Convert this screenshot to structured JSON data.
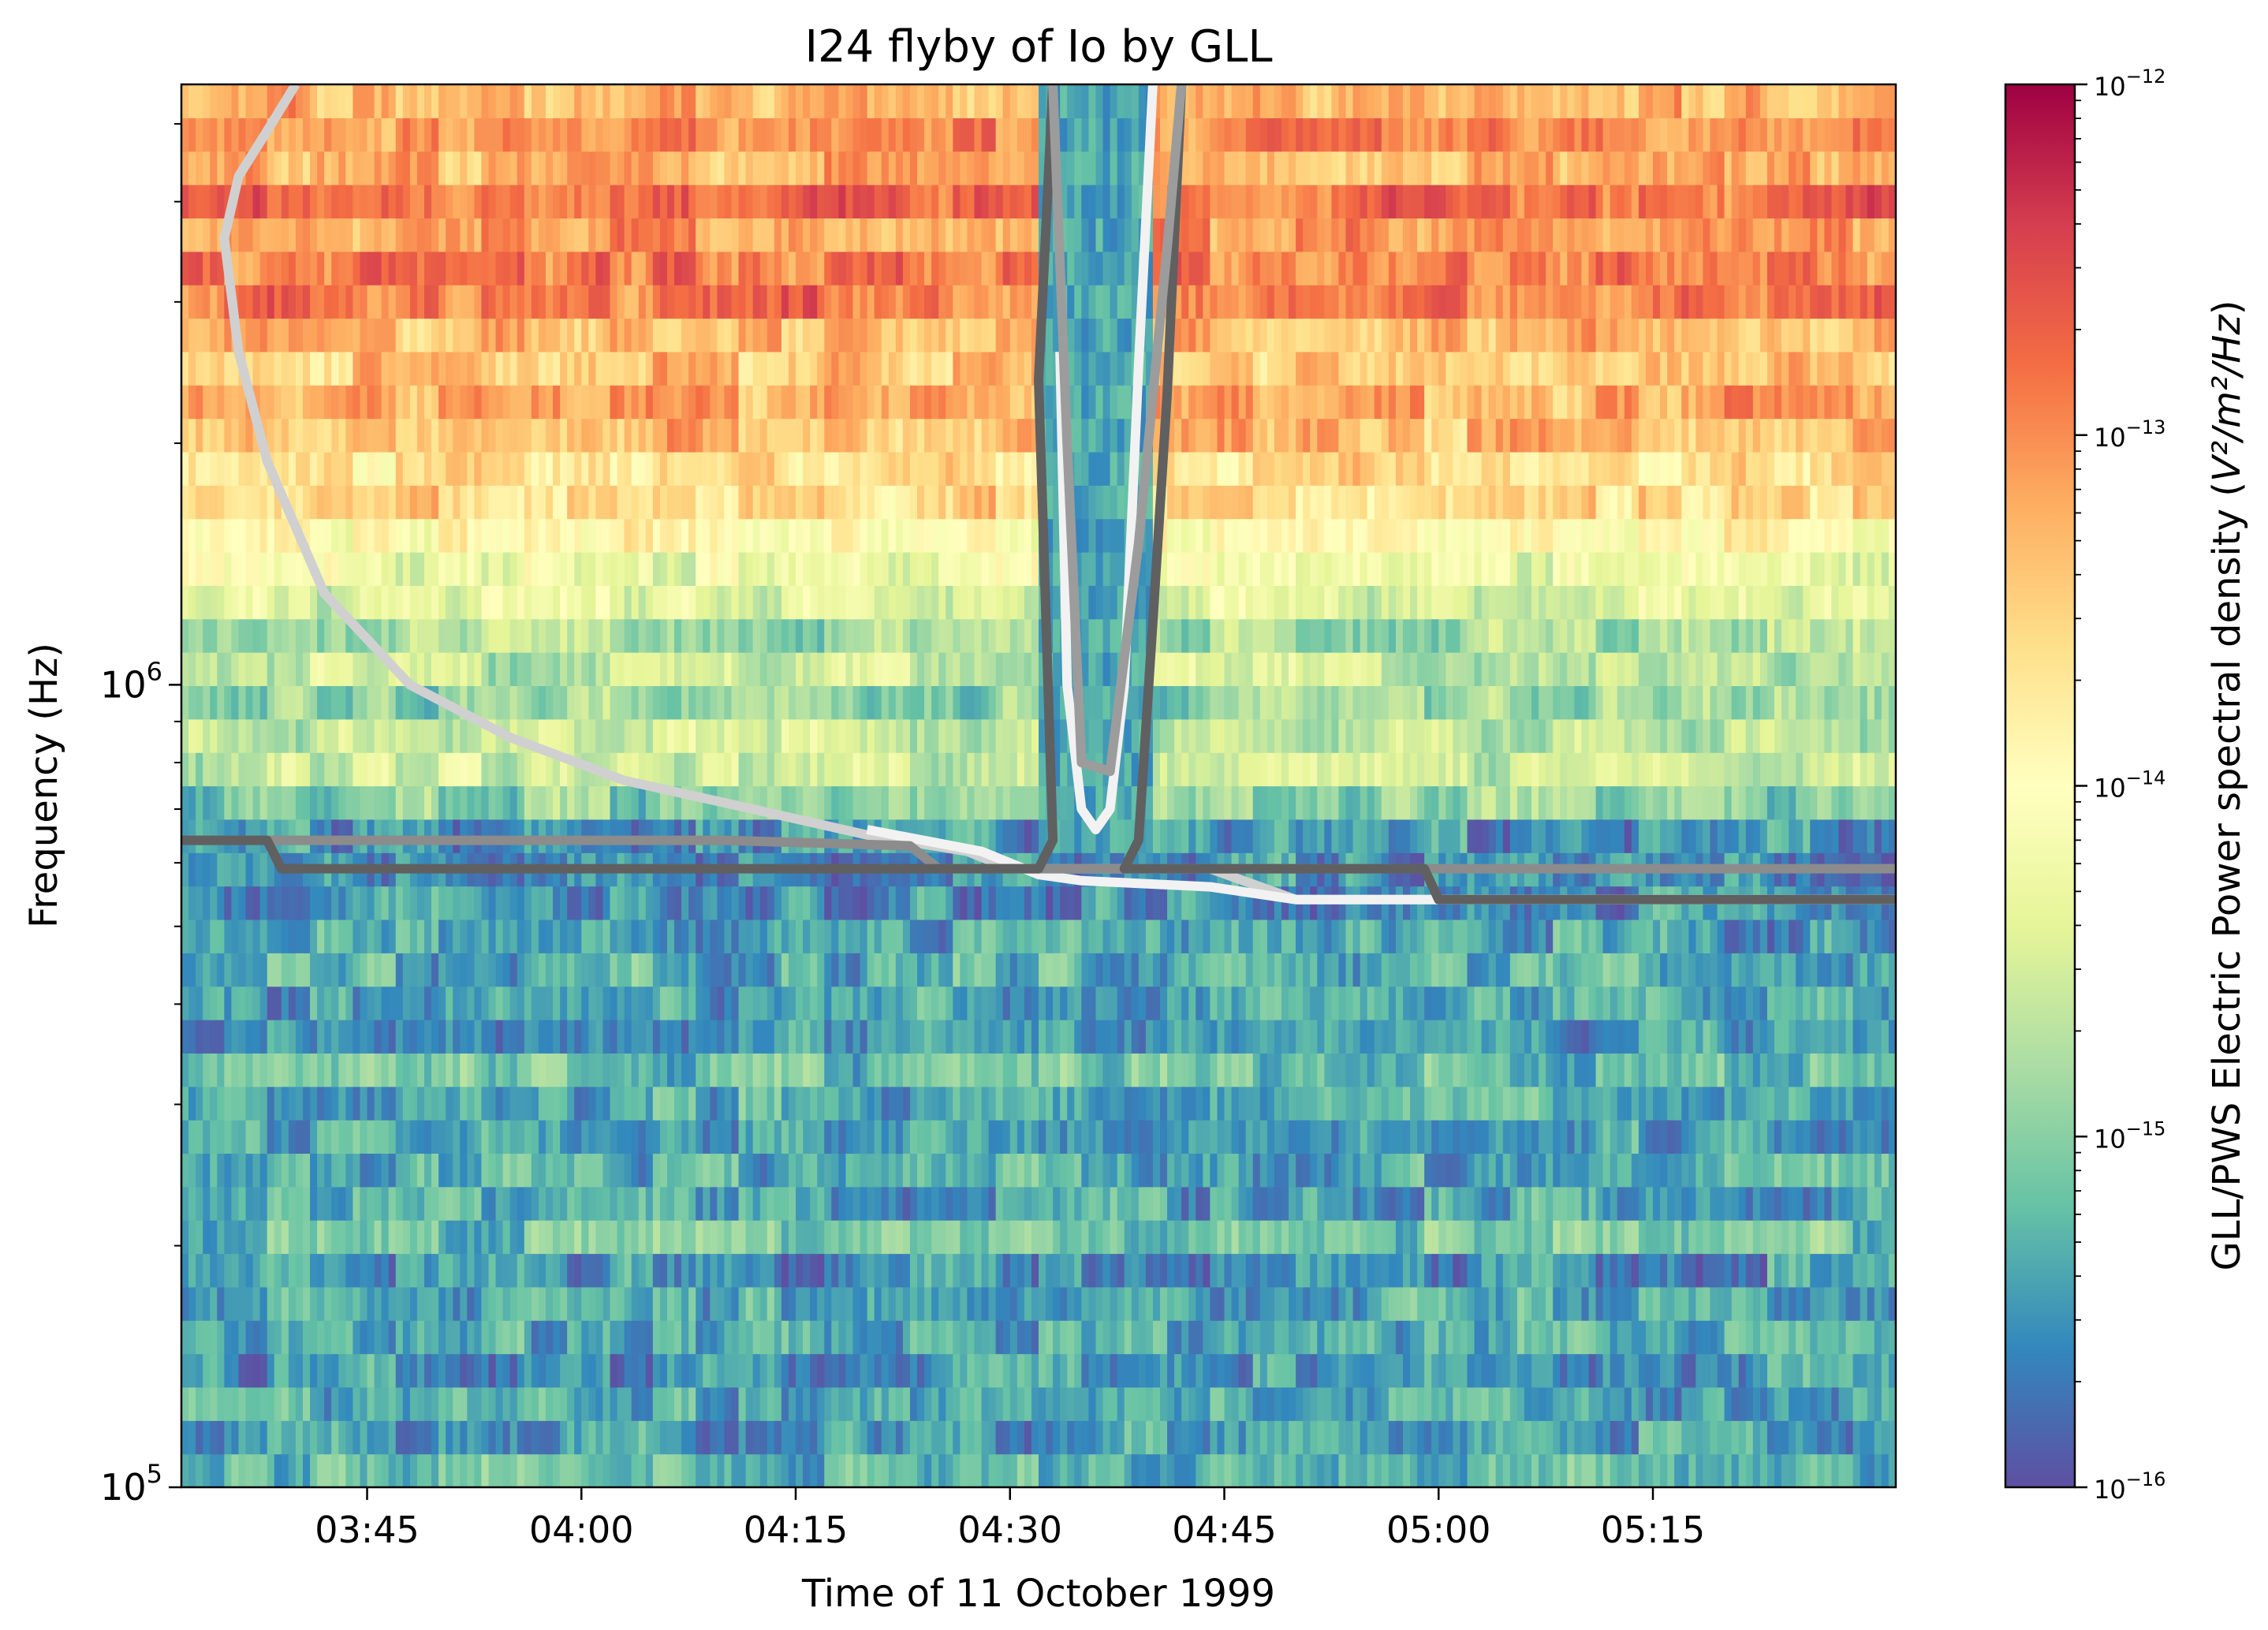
{
  "chart_data": {
    "type": "heatmap",
    "title": "I24 flyby of Io by GLL",
    "xlabel": "Time of 11 October 1999",
    "ylabel": "Frequency (Hz)",
    "colorbar_label_prefix": "GLL/PWS Electric Power spectral density (",
    "colorbar_label_unit": "V²/m²/Hz",
    "colorbar_label_suffix": ")",
    "colormap": "Spectral_r",
    "x_range": [
      "03:32",
      "05:32"
    ],
    "x_ticks": [
      "03:45",
      "04:00",
      "04:15",
      "04:30",
      "04:45",
      "05:00",
      "05:15"
    ],
    "y_scale": "log",
    "y_range": [
      100000,
      5600000
    ],
    "y_major_ticks": [
      {
        "base": "10",
        "exp": "5"
      },
      {
        "base": "10",
        "exp": "6"
      }
    ],
    "colorbar_scale": "log",
    "colorbar_range": [
      1e-16,
      1e-12
    ],
    "colorbar_ticks": [
      {
        "base": "10",
        "exp": "−12"
      },
      {
        "base": "10",
        "exp": "−13"
      },
      {
        "base": "10",
        "exp": "−14"
      },
      {
        "base": "10",
        "exp": "−15"
      },
      {
        "base": "10",
        "exp": "−16"
      }
    ],
    "intensity_profile_log10": {
      "frequency_hz": [
        100000,
        300000,
        500000,
        650000,
        800000,
        1100000,
        1400000,
        1800000,
        2400000,
        3300000,
        5600000
      ],
      "log10_psd": [
        -15.5,
        -15.3,
        -15.4,
        -15.3,
        -14.6,
        -14.9,
        -14.4,
        -13.6,
        -13.3,
        -12.9,
        -13.2
      ]
    },
    "series": [
      {
        "color": "#d0d0d0",
        "points": [
          [
            "03:40:00",
            5600000
          ],
          [
            "03:38:00",
            4900000
          ],
          [
            "03:36:00",
            4300000
          ],
          [
            "03:35:00",
            3600000
          ],
          [
            "03:36:00",
            2600000
          ],
          [
            "03:38:00",
            1900000
          ],
          [
            "03:42:00",
            1300000
          ],
          [
            "03:48:00",
            1000000
          ],
          [
            "03:55:00",
            860000
          ],
          [
            "04:03:00",
            760000
          ],
          [
            "04:12:00",
            700000
          ],
          [
            "04:20:00",
            650000
          ],
          [
            "04:27:00",
            620000
          ],
          [
            "04:30:00",
            590000
          ],
          [
            "04:44:00",
            590000
          ],
          [
            "04:50:00",
            540000
          ],
          [
            "05:00:00",
            540000
          ],
          [
            "05:32:00",
            540000
          ]
        ]
      },
      {
        "color": "#f2f2f2",
        "points": [
          [
            "04:20:00",
            660000
          ],
          [
            "04:28:00",
            620000
          ],
          [
            "04:32:00",
            580000
          ],
          [
            "04:35:00",
            570000
          ],
          [
            "04:44:00",
            560000
          ],
          [
            "04:50:00",
            540000
          ],
          [
            "05:32:00",
            540000
          ]
        ]
      },
      {
        "color": "#8c8c8c",
        "points": [
          [
            "03:32:00",
            640000
          ],
          [
            "04:10:00",
            640000
          ],
          [
            "04:23:00",
            630000
          ],
          [
            "04:25:00",
            590000
          ],
          [
            "04:32:00",
            590000
          ],
          [
            "04:38:00",
            590000
          ],
          [
            "05:32:00",
            590000
          ]
        ]
      },
      {
        "color": "#606060",
        "points": [
          [
            "03:32:00",
            640000
          ],
          [
            "03:38:00",
            640000
          ],
          [
            "03:39:00",
            590000
          ],
          [
            "04:32:00",
            590000
          ],
          [
            "04:33:00",
            640000
          ],
          [
            "04:32:00",
            2400000
          ],
          [
            "04:33:00",
            5600000
          ]
        ]
      },
      {
        "color": "#606060",
        "points": [
          [
            "04:42:00",
            5600000
          ],
          [
            "04:41:00",
            2300000
          ],
          [
            "04:40:00",
            1200000
          ],
          [
            "04:39:00",
            640000
          ],
          [
            "04:38:00",
            590000
          ],
          [
            "04:59:00",
            590000
          ],
          [
            "05:00:00",
            540000
          ],
          [
            "05:32:00",
            540000
          ]
        ]
      },
      {
        "color": "#f2f2f2",
        "points": [
          [
            "04:33:30",
            2600000
          ],
          [
            "04:34:00",
            1000000
          ],
          [
            "04:35:00",
            700000
          ],
          [
            "04:36:00",
            660000
          ],
          [
            "04:37:00",
            700000
          ],
          [
            "04:38:00",
            1000000
          ],
          [
            "04:39:00",
            2500000
          ],
          [
            "04:40:00",
            5600000
          ]
        ]
      },
      {
        "color": "#9c9c9c",
        "points": [
          [
            "04:33:00",
            5600000
          ],
          [
            "04:34:00",
            2000000
          ],
          [
            "04:35:00",
            800000
          ],
          [
            "04:37:00",
            780000
          ],
          [
            "04:39:00",
            1500000
          ],
          [
            "04:41:00",
            3500000
          ],
          [
            "04:42:00",
            5600000
          ]
        ]
      }
    ]
  }
}
